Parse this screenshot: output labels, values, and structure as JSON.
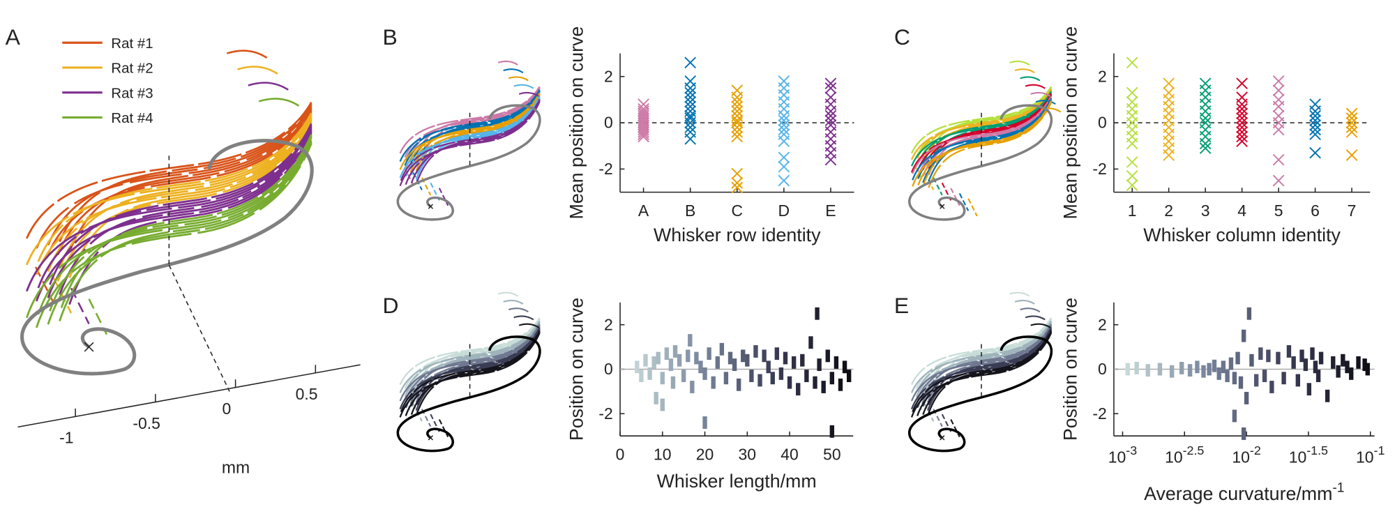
{
  "panel_labels": [
    "A",
    "B",
    "C",
    "D",
    "E"
  ],
  "panel_a": {
    "legend": [
      {
        "name": "Rat #1",
        "color": "#d95319"
      },
      {
        "name": "Rat #2",
        "color": "#edb120"
      },
      {
        "name": "Rat #3",
        "color": "#7e2f8e"
      },
      {
        "name": "Rat #4",
        "color": "#77ac30"
      }
    ],
    "xlim": [
      -1.36,
      0.78
    ],
    "xticks": [
      -1,
      -0.5,
      0,
      0.5
    ],
    "xlabel": "mm"
  },
  "chart_data": [
    {
      "type": "strip",
      "ylabel": "Mean position on curve",
      "xlabel": "Whisker row identity",
      "categories": [
        "A",
        "B",
        "C",
        "D",
        "E"
      ],
      "colors": [
        "#cc79a7",
        "#0072b2",
        "#e69f00",
        "#56b4e9",
        "#7e2f8e"
      ],
      "values": [
        [
          0.8,
          0.6,
          0.5,
          0.4,
          0.3,
          0.2,
          0.1,
          0,
          -0.1,
          -0.2,
          -0.3,
          -0.4,
          -0.5,
          -0.6
        ],
        [
          2.6,
          1.8,
          1.5,
          1.3,
          1.1,
          0.9,
          0.7,
          0.5,
          0.3,
          0.2,
          0,
          -0.2,
          -0.4,
          -0.7
        ],
        [
          1.4,
          1.1,
          0.9,
          0.7,
          0.5,
          0.3,
          0.1,
          0,
          -0.2,
          -0.4,
          -0.6,
          -2.2,
          -2.6,
          -2.8
        ],
        [
          1.8,
          1.5,
          1.2,
          0.9,
          0.6,
          0.3,
          0.1,
          -0.1,
          -0.3,
          -0.5,
          -0.8,
          -1.5,
          -1.9,
          -2.5
        ],
        [
          1.7,
          1.5,
          1.1,
          0.8,
          0.5,
          0.3,
          0.1,
          -0.1,
          -0.4,
          -0.7,
          -1.0,
          -1.3,
          -1.6
        ]
      ],
      "ylim": [
        -3,
        3
      ],
      "yticks": [
        -2,
        0,
        2
      ],
      "hline": 0,
      "hline_style": "dashed",
      "marker": "x"
    },
    {
      "type": "strip",
      "ylabel": "Mean position on curve",
      "xlabel": "Whisker column identity",
      "categories": [
        "1",
        "2",
        "3",
        "4",
        "5",
        "6",
        "7"
      ],
      "colors": [
        "#b5e03c",
        "#edb120",
        "#009e73",
        "#d4002a",
        "#cc79a7",
        "#0072b2",
        "#e69f00"
      ],
      "values": [
        [
          2.6,
          1.3,
          0.9,
          0.6,
          0.3,
          0,
          -0.3,
          -0.6,
          -0.9,
          -1.7,
          -2.3,
          -2.7
        ],
        [
          1.7,
          1.3,
          1.0,
          0.7,
          0.4,
          0.1,
          -0.2,
          -0.5,
          -0.8,
          -1.1,
          -1.4
        ],
        [
          1.7,
          1.4,
          1.1,
          0.8,
          0.5,
          0.2,
          0,
          -0.3,
          -0.6,
          -0.9,
          -1.1
        ],
        [
          1.7,
          1.1,
          0.8,
          0.6,
          0.4,
          0.2,
          0,
          -0.2,
          -0.4,
          -0.6,
          -0.8
        ],
        [
          1.8,
          1.4,
          1.0,
          0.7,
          0.3,
          0,
          -0.3,
          -1.6,
          -2.5
        ],
        [
          0.8,
          0.5,
          0.3,
          0.1,
          -0.1,
          -0.3,
          -0.5,
          -1.3
        ],
        [
          0.4,
          0.2,
          0,
          -0.2,
          -0.4,
          -1.4
        ]
      ],
      "ylim": [
        -3,
        3
      ],
      "yticks": [
        -2,
        0,
        2
      ],
      "hline": 0,
      "hline_style": "dashed",
      "marker": "x"
    },
    {
      "type": "scatter",
      "ylabel": "Position on curve",
      "xlabel": "Whisker length/mm",
      "x": [
        4,
        5,
        6,
        7,
        8,
        8.5,
        9,
        10,
        11,
        12,
        12.5,
        13,
        14,
        15,
        16,
        16.5,
        17,
        18,
        19,
        20,
        21,
        22,
        23,
        24,
        25,
        26,
        27,
        28,
        29,
        30,
        31,
        32,
        33,
        34,
        35,
        36,
        37,
        38,
        39,
        40,
        41,
        42,
        43,
        44,
        45,
        46,
        46.5,
        47,
        48,
        49,
        50,
        51,
        52,
        53,
        54,
        20,
        50,
        10
      ],
      "values": [
        0.1,
        -0.3,
        0.4,
        -0.2,
        0.3,
        -1.3,
        0.5,
        -0.4,
        0.7,
        0.2,
        -0.6,
        0.8,
        0.4,
        -0.3,
        0.6,
        1.3,
        -0.8,
        0.5,
        0.1,
        -0.2,
        0.7,
        -0.6,
        0.3,
        0.9,
        -0.4,
        0.5,
        0.2,
        -0.7,
        0.6,
        0.4,
        -0.3,
        0.8,
        -0.5,
        0.6,
        0.1,
        -0.4,
        0.7,
        -0.2,
        0.5,
        -0.6,
        0.3,
        -0.9,
        0.4,
        -0.3,
        1.2,
        -0.6,
        2.5,
        0.2,
        -0.8,
        0.6,
        -0.4,
        0.3,
        -0.7,
        0.1,
        -0.3,
        -2.4,
        -2.8,
        -1.6
      ],
      "xlim": [
        0,
        55
      ],
      "xticks": [
        0,
        10,
        20,
        30,
        40,
        50
      ],
      "ylim": [
        -3,
        3
      ],
      "yticks": [
        -2,
        0,
        2
      ],
      "hline": 0,
      "hline_style": "solid",
      "colormap": [
        "#d3e8e2",
        "#7c8aa0",
        "#3a3b55",
        "#0a0a0f"
      ],
      "marker": "bar"
    },
    {
      "type": "scatter",
      "ylabel": "Position on curve",
      "xlabel": "Average curvature/mm",
      "xlabel_exponent": "-1",
      "x": [
        0.0011,
        0.0013,
        0.0016,
        0.002,
        0.0025,
        0.003,
        0.0035,
        0.004,
        0.0045,
        0.005,
        0.0055,
        0.006,
        0.0065,
        0.007,
        0.0075,
        0.008,
        0.0085,
        0.009,
        0.0095,
        0.01,
        0.0105,
        0.011,
        0.012,
        0.013,
        0.014,
        0.015,
        0.016,
        0.018,
        0.02,
        0.022,
        0.024,
        0.026,
        0.028,
        0.03,
        0.032,
        0.034,
        0.036,
        0.038,
        0.04,
        0.045,
        0.05,
        0.055,
        0.06,
        0.065,
        0.07,
        0.08,
        0.09,
        0.095,
        0.008,
        0.0095
      ],
      "values": [
        0,
        0.05,
        -0.05,
        0,
        -0.1,
        0.05,
        -0.05,
        0.1,
        -0.1,
        0,
        0.15,
        -0.2,
        0.1,
        -0.3,
        0.25,
        -0.4,
        0.5,
        -0.6,
        1.5,
        -1.3,
        2.5,
        0.4,
        -0.5,
        0.7,
        -0.3,
        0.6,
        -0.8,
        0.5,
        -0.4,
        0.8,
        0.3,
        -0.5,
        0.6,
        0.2,
        -0.9,
        0.7,
        0.1,
        -0.3,
        0.5,
        -1.2,
        0.3,
        -0.1,
        0.4,
        0.1,
        -0.2,
        0.3,
        0.2,
        0,
        -2.1,
        -2.9
      ],
      "log_x": true,
      "xlim": [
        0.00085,
        0.108
      ],
      "xticks": [
        {
          "value": 0.001,
          "label": "10",
          "exponent": "-3"
        },
        {
          "value": 0.00316,
          "label": "10",
          "exponent": "-2.5"
        },
        {
          "value": 0.01,
          "label": "10",
          "exponent": "-2"
        },
        {
          "value": 0.0316,
          "label": "10",
          "exponent": "-1.5"
        },
        {
          "value": 0.1,
          "label": "10",
          "exponent": "-1"
        }
      ],
      "ylim": [
        -3,
        3
      ],
      "yticks": [
        -2,
        0,
        2
      ],
      "hline": 0,
      "hline_style": "solid",
      "colormap": [
        "#d3e8e2",
        "#7c8aa0",
        "#3a3b55",
        "#0a0a0f"
      ],
      "marker": "bar"
    }
  ]
}
